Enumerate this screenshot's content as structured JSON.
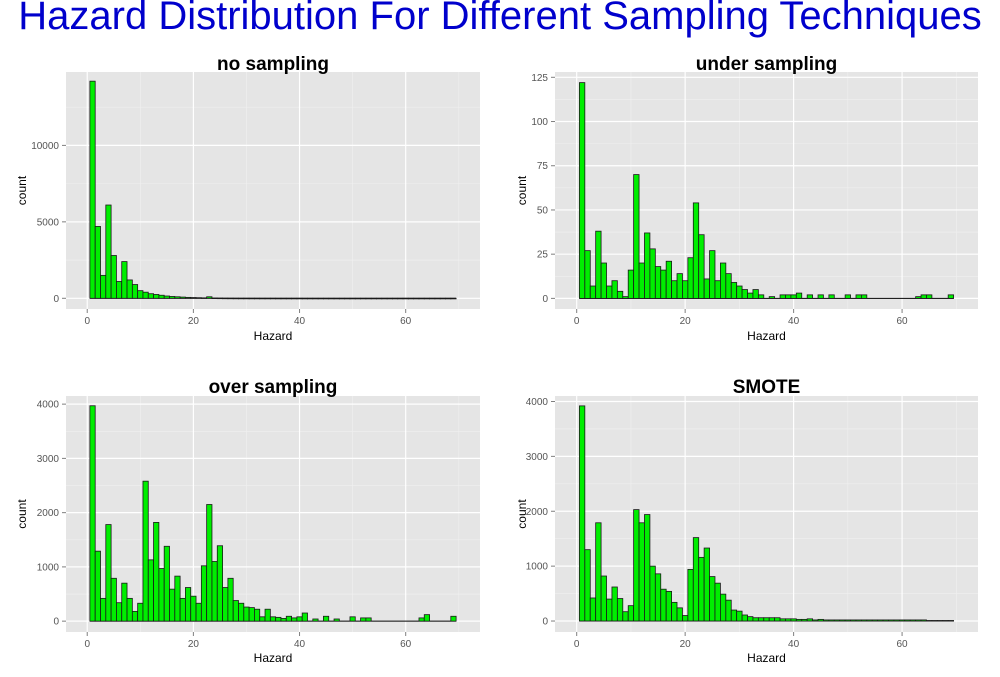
{
  "title": "Hazard Distribution For Different Sampling Techniques",
  "colors": {
    "title": "#0000cc",
    "bar_fill": "#00ee00",
    "bar_stroke": "#1a1a1a",
    "panel_bg": "#e5e5e5",
    "grid_major": "#ffffff",
    "grid_minor": "#f0f0f0"
  },
  "chart_data": [
    {
      "type": "bar",
      "title": "no sampling",
      "xlabel": "Hazard",
      "ylabel": "count",
      "xlim": [
        -4,
        74
      ],
      "ylim": [
        -700,
        14800
      ],
      "x_ticks": [
        0,
        20,
        40,
        60
      ],
      "y_ticks": [
        0,
        5000,
        10000
      ],
      "binwidth": 1,
      "x": [
        1,
        2,
        3,
        4,
        5,
        6,
        7,
        8,
        9,
        10,
        11,
        12,
        13,
        14,
        15,
        16,
        17,
        18,
        19,
        20,
        21,
        22,
        23,
        24,
        25,
        26,
        27,
        28,
        29,
        30,
        31,
        32,
        33,
        34,
        35,
        36,
        37,
        38,
        39,
        40,
        41,
        42,
        43,
        44,
        45,
        46,
        47,
        48,
        49,
        50,
        51,
        52,
        53,
        54,
        55,
        56,
        57,
        58,
        59,
        60,
        61,
        62,
        63,
        64,
        65,
        66,
        67,
        68,
        69
      ],
      "values": [
        14200,
        4700,
        1500,
        6100,
        2800,
        1100,
        2400,
        1200,
        900,
        500,
        400,
        300,
        250,
        200,
        150,
        120,
        100,
        80,
        60,
        50,
        40,
        30,
        100,
        20,
        15,
        10,
        8,
        6,
        5,
        5,
        4,
        4,
        3,
        3,
        3,
        2,
        2,
        2,
        2,
        2,
        1,
        1,
        1,
        1,
        1,
        1,
        1,
        1,
        1,
        1,
        1,
        1,
        1,
        1,
        1,
        1,
        1,
        1,
        1,
        1,
        1,
        1,
        1,
        1,
        1,
        1,
        1,
        1,
        1
      ]
    },
    {
      "type": "bar",
      "title": "under sampling",
      "xlabel": "Hazard",
      "ylabel": "count",
      "xlim": [
        -4,
        74
      ],
      "ylim": [
        -6,
        128
      ],
      "x_ticks": [
        0,
        20,
        40,
        60
      ],
      "y_ticks": [
        0,
        25,
        50,
        75,
        100,
        125
      ],
      "binwidth": 1,
      "x": [
        1,
        2,
        3,
        4,
        5,
        6,
        7,
        8,
        9,
        10,
        11,
        12,
        13,
        14,
        15,
        16,
        17,
        18,
        19,
        20,
        21,
        22,
        23,
        24,
        25,
        26,
        27,
        28,
        29,
        30,
        31,
        32,
        33,
        34,
        35,
        36,
        37,
        38,
        39,
        40,
        41,
        42,
        43,
        44,
        45,
        46,
        47,
        48,
        49,
        50,
        51,
        52,
        53,
        54,
        55,
        56,
        57,
        58,
        59,
        60,
        61,
        62,
        63,
        64,
        65,
        66,
        67,
        68,
        69
      ],
      "values": [
        122,
        27,
        7,
        38,
        20,
        7,
        10,
        4,
        1,
        16,
        70,
        20,
        37,
        28,
        18,
        16,
        21,
        10,
        14,
        10,
        23,
        54,
        36,
        11,
        27,
        10,
        20,
        14,
        9,
        7,
        5,
        3,
        5,
        2,
        0,
        1,
        0,
        2,
        2,
        2,
        3,
        0,
        2,
        0,
        2,
        0,
        2,
        0,
        0,
        2,
        0,
        2,
        2,
        0,
        0,
        0,
        0,
        0,
        0,
        0,
        0,
        0,
        1,
        2,
        2,
        0,
        0,
        0,
        2
      ]
    },
    {
      "type": "bar",
      "title": "over sampling",
      "xlabel": "Hazard",
      "ylabel": "count",
      "xlim": [
        -4,
        74
      ],
      "ylim": [
        -200,
        4150
      ],
      "x_ticks": [
        0,
        20,
        40,
        60
      ],
      "y_ticks": [
        0,
        1000,
        2000,
        3000,
        4000
      ],
      "binwidth": 1,
      "x": [
        1,
        2,
        3,
        4,
        5,
        6,
        7,
        8,
        9,
        10,
        11,
        12,
        13,
        14,
        15,
        16,
        17,
        18,
        19,
        20,
        21,
        22,
        23,
        24,
        25,
        26,
        27,
        28,
        29,
        30,
        31,
        32,
        33,
        34,
        35,
        36,
        37,
        38,
        39,
        40,
        41,
        42,
        43,
        44,
        45,
        46,
        47,
        48,
        49,
        50,
        51,
        52,
        53,
        54,
        55,
        56,
        57,
        58,
        59,
        60,
        61,
        62,
        63,
        64,
        65,
        66,
        67,
        68,
        69
      ],
      "values": [
        3970,
        1290,
        420,
        1780,
        790,
        340,
        700,
        420,
        180,
        330,
        2580,
        1130,
        1820,
        970,
        1380,
        590,
        830,
        420,
        620,
        460,
        330,
        1020,
        2150,
        1100,
        1390,
        620,
        790,
        380,
        330,
        260,
        250,
        220,
        80,
        220,
        80,
        70,
        50,
        90,
        60,
        80,
        150,
        0,
        40,
        0,
        90,
        0,
        40,
        0,
        0,
        80,
        0,
        60,
        60,
        0,
        0,
        0,
        0,
        0,
        0,
        0,
        0,
        0,
        60,
        120,
        0,
        0,
        0,
        0,
        90
      ]
    },
    {
      "type": "bar",
      "title": "SMOTE",
      "xlabel": "Hazard",
      "ylabel": "count",
      "xlim": [
        -4,
        74
      ],
      "ylim": [
        -200,
        4100
      ],
      "x_ticks": [
        0,
        20,
        40,
        60
      ],
      "y_ticks": [
        0,
        1000,
        2000,
        3000,
        4000
      ],
      "binwidth": 1,
      "x": [
        1,
        2,
        3,
        4,
        5,
        6,
        7,
        8,
        9,
        10,
        11,
        12,
        13,
        14,
        15,
        16,
        17,
        18,
        19,
        20,
        21,
        22,
        23,
        24,
        25,
        26,
        27,
        28,
        29,
        30,
        31,
        32,
        33,
        34,
        35,
        36,
        37,
        38,
        39,
        40,
        41,
        42,
        43,
        44,
        45,
        46,
        47,
        48,
        49,
        50,
        51,
        52,
        53,
        54,
        55,
        56,
        57,
        58,
        59,
        60,
        61,
        62,
        63,
        64,
        65,
        66,
        67,
        68,
        69
      ],
      "values": [
        3920,
        1300,
        420,
        1790,
        820,
        400,
        620,
        410,
        170,
        280,
        2030,
        1790,
        1940,
        1000,
        860,
        580,
        540,
        340,
        240,
        100,
        940,
        1520,
        1160,
        1330,
        810,
        690,
        490,
        380,
        200,
        180,
        110,
        80,
        60,
        60,
        60,
        60,
        60,
        40,
        40,
        40,
        30,
        30,
        40,
        20,
        30,
        20,
        20,
        20,
        20,
        20,
        20,
        20,
        20,
        20,
        20,
        20,
        20,
        20,
        20,
        20,
        20,
        20,
        20,
        20,
        10,
        10,
        10,
        10,
        10
      ]
    }
  ]
}
